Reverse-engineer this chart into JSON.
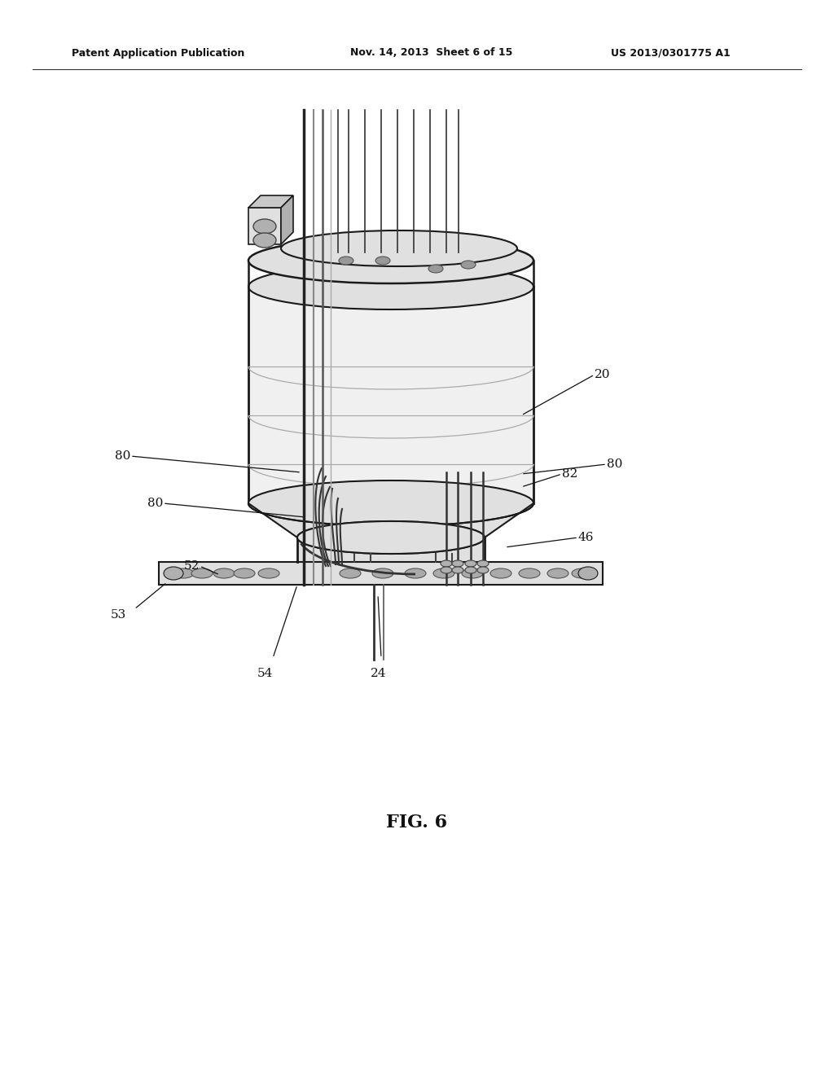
{
  "bg_color": "#ffffff",
  "header_left": "Patent Application Publication",
  "header_mid": "Nov. 14, 2013  Sheet 6 of 15",
  "header_right": "US 2013/0301775 A1",
  "figure_label": "FIG. 6",
  "line_color": "#1a1a1a",
  "label_color": "#111111",
  "fill_white": "#ffffff",
  "fill_light": "#f0f0f0",
  "fill_mid": "#e0e0e0",
  "fill_dark": "#c8c8c8",
  "fill_darker": "#b0b0b0"
}
